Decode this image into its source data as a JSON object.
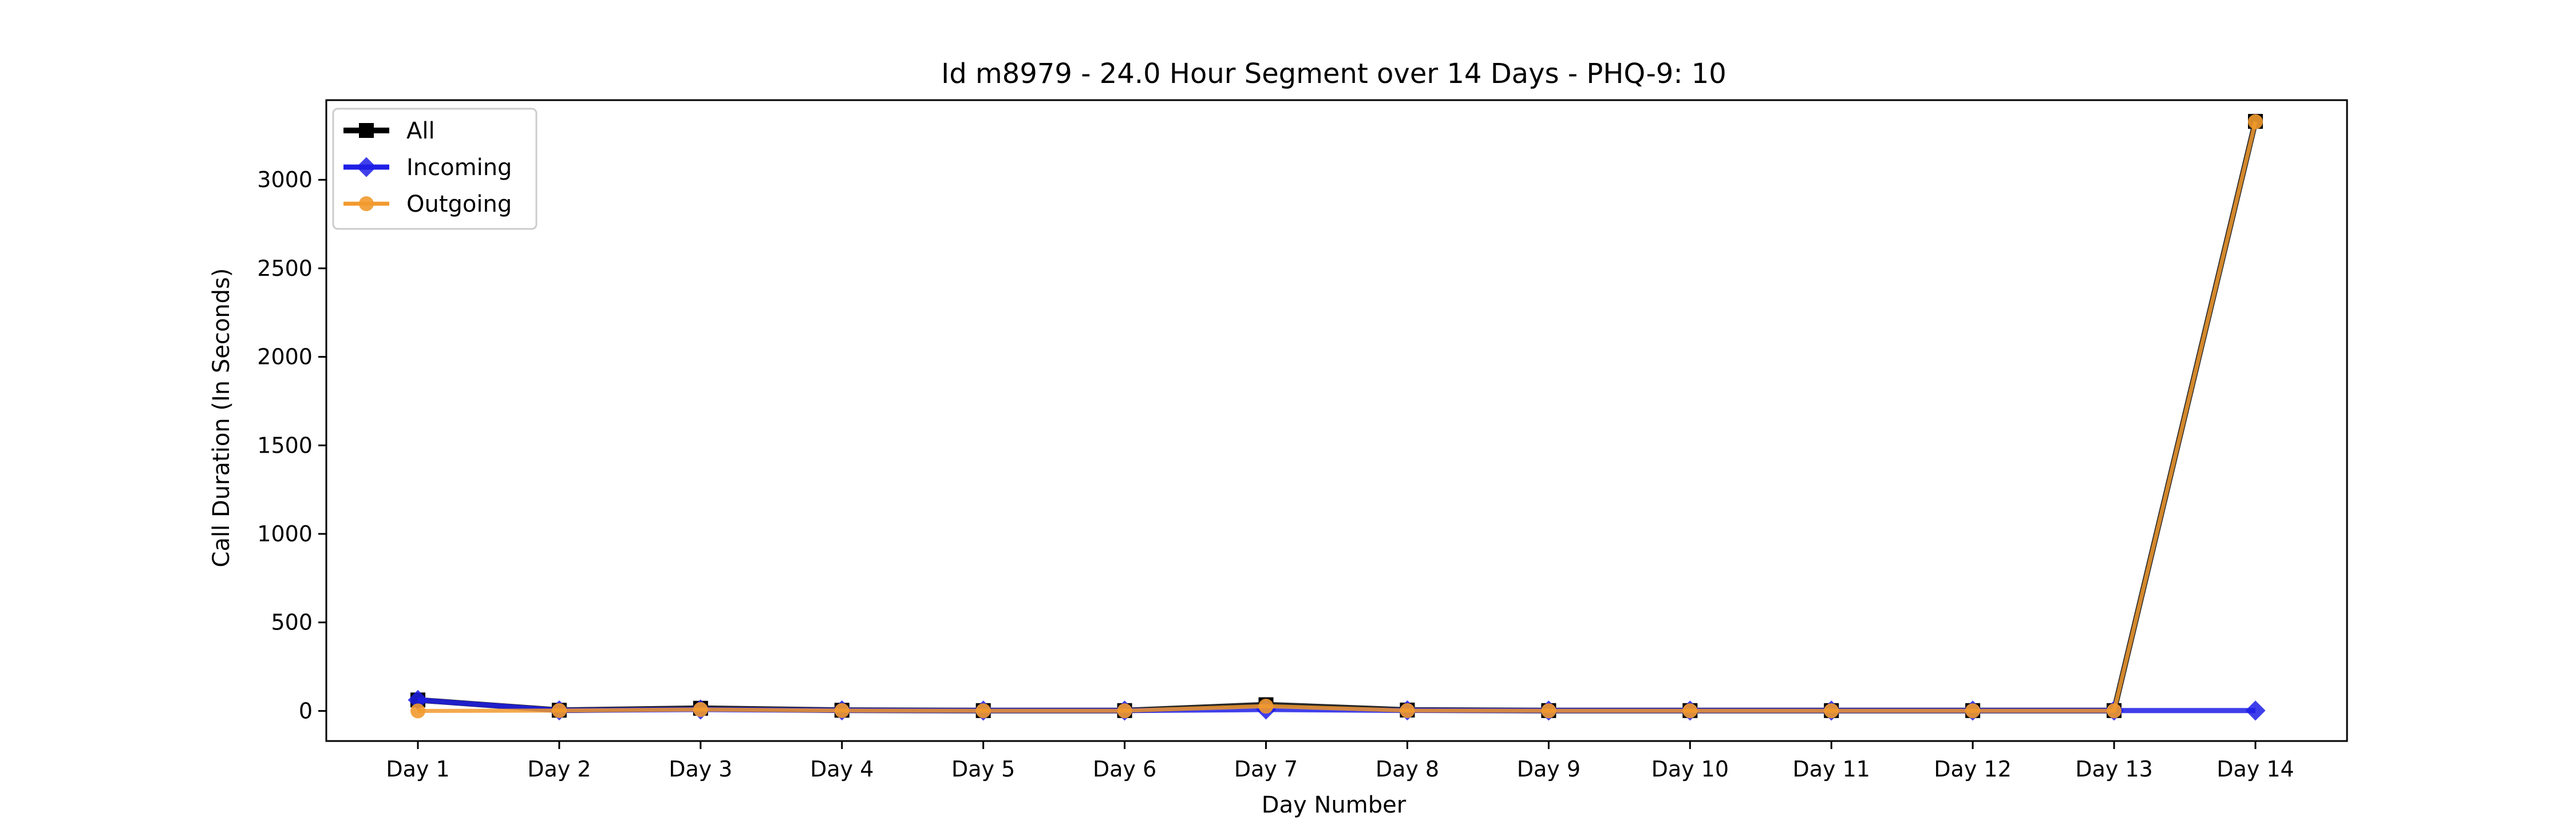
{
  "chart_data": {
    "type": "line",
    "title": "Id m8979 - 24.0 Hour Segment over 14 Days - PHQ-9: 10",
    "xlabel": "Day Number",
    "ylabel": "Call Duration (In Seconds)",
    "categories": [
      "Day 1",
      "Day 2",
      "Day 3",
      "Day 4",
      "Day 5",
      "Day 6",
      "Day 7",
      "Day 8",
      "Day 9",
      "Day 10",
      "Day 11",
      "Day 12",
      "Day 13",
      "Day 14"
    ],
    "yticks": [
      0,
      500,
      1000,
      1500,
      2000,
      2500,
      3000
    ],
    "ylim": [
      -170,
      3450
    ],
    "grid": false,
    "legend_position": "top-left",
    "series": [
      {
        "name": "All",
        "color": "#000000",
        "marker": "square",
        "values": [
          62,
          4,
          15,
          4,
          2,
          2,
          35,
          5,
          2,
          2,
          2,
          2,
          2,
          3330
        ]
      },
      {
        "name": "Incoming",
        "color": "#1f1fe6",
        "marker": "diamond",
        "values": [
          62,
          3,
          8,
          3,
          2,
          2,
          8,
          3,
          2,
          2,
          2,
          2,
          2,
          2
        ]
      },
      {
        "name": "Outgoing",
        "color": "#f29a2e",
        "marker": "circle",
        "values": [
          0,
          2,
          8,
          2,
          1,
          1,
          27,
          2,
          1,
          1,
          1,
          1,
          1,
          3328
        ]
      }
    ]
  }
}
